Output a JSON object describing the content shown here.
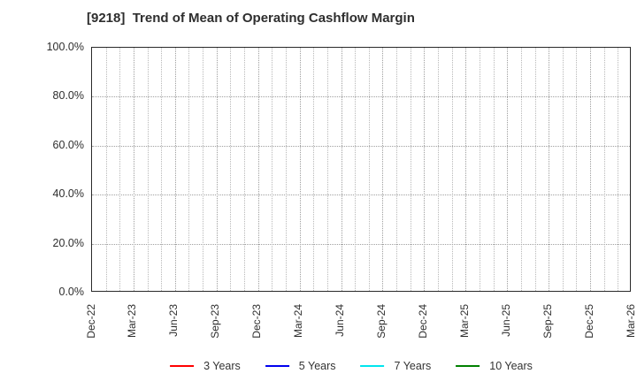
{
  "chart_data": {
    "type": "line",
    "title": "[9218]  Trend of Mean of Operating Cashflow Margin",
    "xlabel": "",
    "ylabel": "",
    "x_tick_labels": [
      "Dec-22",
      "Mar-23",
      "Jun-23",
      "Sep-23",
      "Dec-23",
      "Mar-24",
      "Jun-24",
      "Sep-24",
      "Dec-24",
      "Mar-25",
      "Jun-25",
      "Sep-25",
      "Dec-25",
      "Mar-26"
    ],
    "months_per_tick": 3,
    "total_months": 39,
    "y_tick_labels": [
      "0.0%",
      "20.0%",
      "40.0%",
      "60.0%",
      "80.0%",
      "100.0%"
    ],
    "ylim": [
      0,
      100
    ],
    "grid": true,
    "legend_position": "bottom-center",
    "series": [
      {
        "name": "3 Years",
        "color": "#ff0000",
        "values": []
      },
      {
        "name": "5 Years",
        "color": "#0000ee",
        "values": []
      },
      {
        "name": "7 Years",
        "color": "#00e5ee",
        "values": []
      },
      {
        "name": "10 Years",
        "color": "#008000",
        "values": []
      }
    ]
  },
  "colors": {
    "background": "#ffffff",
    "text": "#2e2e2e",
    "frame": "#2a2a2a",
    "grid_minor": "#b8b8b8",
    "grid_major": "#9e9e9e",
    "grid_horizontal": "#a0a0a0"
  }
}
